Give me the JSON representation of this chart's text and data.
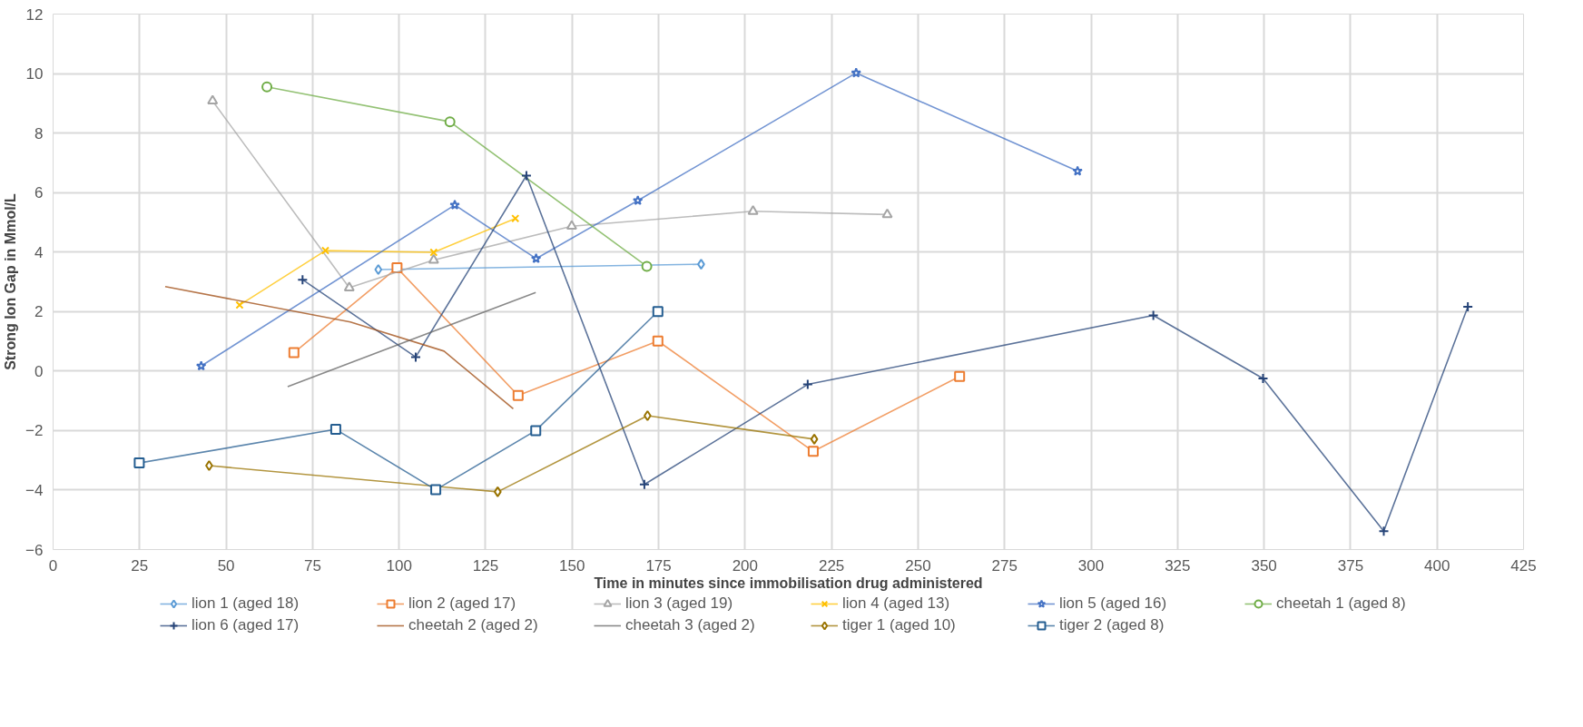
{
  "chart_data": {
    "type": "line",
    "xlabel": "Time in minutes since immobilisation drug administered",
    "ylabel": "Strong Ion Gap in Mmol/L",
    "xlim": [
      0,
      425
    ],
    "xticks": [
      0,
      25,
      50,
      75,
      100,
      125,
      150,
      175,
      200,
      225,
      250,
      275,
      300,
      325,
      350,
      375,
      400,
      425
    ],
    "ylim": [
      -6,
      12
    ],
    "yticks": [
      -6,
      -4,
      -2,
      0,
      2,
      4,
      6,
      8,
      10,
      12
    ],
    "grid": true,
    "legend": "bottom",
    "series": [
      {
        "name": "lion 1 (aged 18)",
        "color": "#5b9bd5",
        "marker": "diamond",
        "x": [
          94,
          187.3
        ],
        "values": [
          3.41,
          3.59
        ]
      },
      {
        "name": "lion 2 (aged 17)",
        "color": "#ed7d31",
        "marker": "square",
        "x": [
          69.6,
          99.4,
          134.4,
          174.8,
          219.7,
          262
        ],
        "values": [
          0.62,
          3.47,
          -0.82,
          1.01,
          -2.7,
          -0.18
        ]
      },
      {
        "name": "lion 3 (aged 19)",
        "color": "#a5a5a5",
        "marker": "triangle",
        "x": [
          46.1,
          85.6,
          110,
          149.9,
          202.3,
          241.1
        ],
        "values": [
          9.08,
          2.8,
          3.73,
          4.87,
          5.37,
          5.26
        ]
      },
      {
        "name": "lion 4 (aged 13)",
        "color": "#ffc000",
        "marker": "x",
        "x": [
          53.9,
          78.7,
          110,
          133.6
        ],
        "values": [
          2.22,
          4.05,
          3.99,
          5.13
        ]
      },
      {
        "name": "lion 5 (aged 16)",
        "color": "#4472c4",
        "marker": "star",
        "x": [
          42.8,
          116.1,
          139.6,
          169,
          232.1,
          296.1
        ],
        "values": [
          0.17,
          5.58,
          3.78,
          5.73,
          10.02,
          6.72
        ]
      },
      {
        "name": "cheetah 1 (aged 8)",
        "color": "#70ad47",
        "marker": "circle",
        "x": [
          61.8,
          114.7,
          171.6
        ],
        "values": [
          9.55,
          8.38,
          3.52
        ]
      },
      {
        "name": "lion 6 (aged 17)",
        "color": "#264478",
        "marker": "cross",
        "x": [
          72.1,
          104.8,
          136.8,
          170.9,
          218.1,
          318,
          349.7,
          384.6,
          408.9
        ],
        "values": [
          3.07,
          0.47,
          6.57,
          -3.81,
          -0.45,
          1.87,
          -0.25,
          -5.38,
          2.16
        ]
      },
      {
        "name": "cheetah 2 (aged 2)",
        "color": "#9e480e",
        "x": [
          32.4,
          85.9,
          113,
          133
        ],
        "values": [
          2.84,
          1.65,
          0.67,
          -1.27
        ]
      },
      {
        "name": "cheetah 3 (aged 2)",
        "color": "#636363",
        "x": [
          67.8,
          139.5
        ],
        "values": [
          -0.52,
          2.64
        ]
      },
      {
        "name": "tiger 1 (aged 10)",
        "color": "#997300",
        "marker": "diamond",
        "x": [
          45.1,
          128.5,
          171.8,
          220
        ],
        "values": [
          -3.18,
          -4.06,
          -1.5,
          -2.29
        ]
      },
      {
        "name": "tiger 2 (aged 8)",
        "color": "#255e91",
        "marker": "square",
        "x": [
          24.9,
          81.7,
          110.6,
          139.5,
          174.8
        ],
        "values": [
          -3.09,
          -1.96,
          -3.99,
          -2.0,
          2.0
        ]
      }
    ]
  }
}
